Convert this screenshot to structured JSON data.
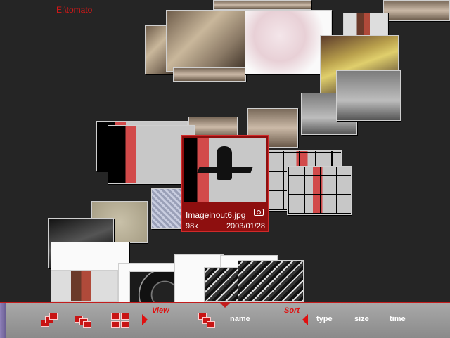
{
  "path": "E:\\tomato",
  "selected": {
    "filename": "Imageinout6.jpg",
    "size": "98k",
    "date": "2003/01/28",
    "icon": "camera-icon"
  },
  "toolbar": {
    "view_label": "View",
    "sort_label": "Sort",
    "sort_options": [
      "name",
      "type",
      "size",
      "time"
    ]
  },
  "colors": {
    "accent": "#c81414",
    "background": "#252525",
    "selected_bg": "#8e0f0f"
  }
}
